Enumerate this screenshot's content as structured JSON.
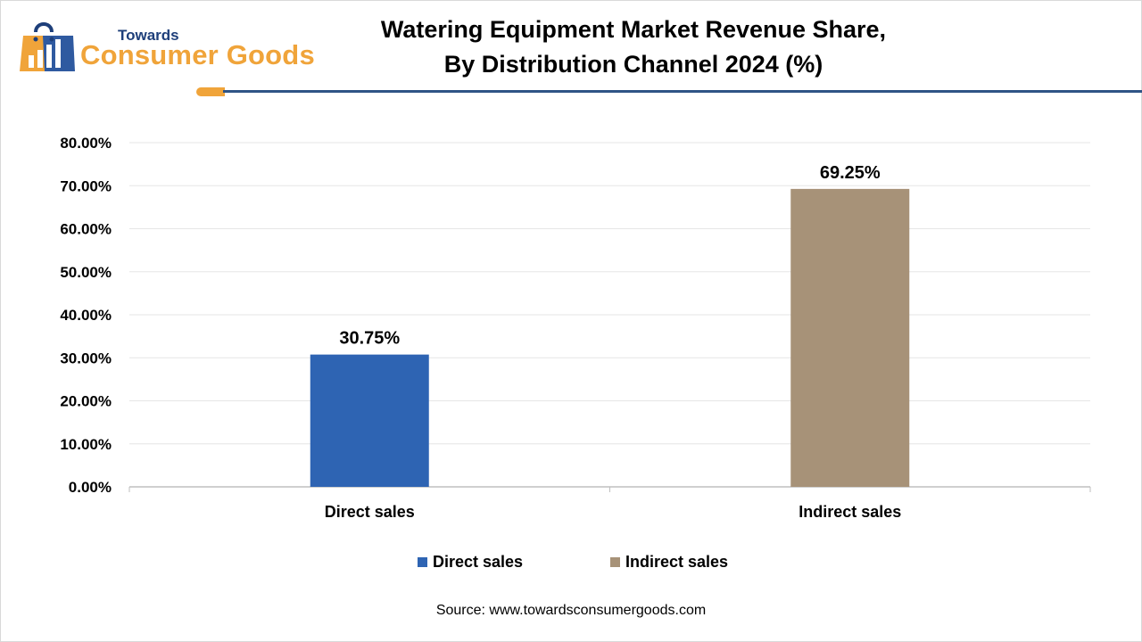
{
  "brand": {
    "small": "Towards",
    "big": "Consumer Goods",
    "accent": "#f0a43a",
    "navy": "#1e3f7a",
    "icon": "shopping-bag-chart-icon"
  },
  "header": {
    "title_line1": "Watering Equipment Market Revenue Share,",
    "title_line2": "By Distribution Channel 2024 (%)"
  },
  "chart_data": {
    "type": "bar",
    "title": "Watering Equipment Market Revenue Share, By Distribution Channel 2024 (%)",
    "categories": [
      "Direct sales",
      "Indirect sales"
    ],
    "values": [
      30.75,
      69.25
    ],
    "data_labels": [
      "30.75%",
      "69.25%"
    ],
    "colors": [
      "#2e64b3",
      "#a79278"
    ],
    "ylim": [
      0,
      80
    ],
    "yticks": [
      0,
      10,
      20,
      30,
      40,
      50,
      60,
      70,
      80
    ],
    "ytick_labels": [
      "0.00%",
      "10.00%",
      "20.00%",
      "30.00%",
      "40.00%",
      "50.00%",
      "60.00%",
      "70.00%",
      "80.00%"
    ],
    "xlabel": "",
    "ylabel": "",
    "grid": true,
    "legend_position": "bottom"
  },
  "legend": [
    {
      "label": "Direct sales",
      "color": "#2e64b3"
    },
    {
      "label": "Indirect sales",
      "color": "#a79278"
    }
  ],
  "footer": {
    "source": "Source: www.towardsconsumergoods.com"
  }
}
